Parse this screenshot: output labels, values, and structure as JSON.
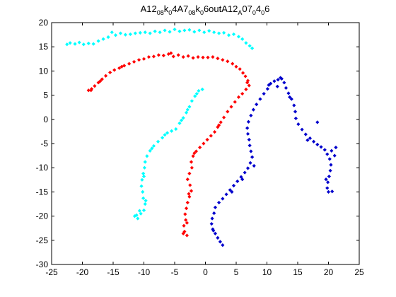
{
  "chart_data": {
    "type": "scatter",
    "title": "A12",
    "title_parts": [
      {
        "text": "A12",
        "sub": false
      },
      {
        "text": "08",
        "sub": true
      },
      {
        "text": "k",
        "sub": false
      },
      {
        "text": "0",
        "sub": true
      },
      {
        "text": "4A7",
        "sub": false
      },
      {
        "text": "08",
        "sub": true
      },
      {
        "text": "k",
        "sub": false
      },
      {
        "text": "0",
        "sub": true
      },
      {
        "text": "6outA12",
        "sub": false
      },
      {
        "text": "A",
        "sub": true
      },
      {
        "text": "07",
        "sub": false
      },
      {
        "text": "0",
        "sub": true
      },
      {
        "text": "4",
        "sub": false
      },
      {
        "text": "0",
        "sub": true
      },
      {
        "text": "6",
        "sub": false
      }
    ],
    "xlabel": "",
    "ylabel": "",
    "xlim": [
      -25,
      25
    ],
    "ylim": [
      -30,
      20
    ],
    "xticks": [
      -25,
      -20,
      -15,
      -10,
      -5,
      0,
      5,
      10,
      15,
      20,
      25
    ],
    "yticks": [
      -30,
      -25,
      -20,
      -15,
      -10,
      -5,
      0,
      5,
      10,
      15,
      20
    ],
    "grid": false,
    "marker": "diamond",
    "series": [
      {
        "color": "#00ffff",
        "points": [
          [
            -22.5,
            15.5
          ],
          [
            -22.0,
            15.8
          ],
          [
            -21.2,
            15.6
          ],
          [
            -20.5,
            15.9
          ],
          [
            -19.8,
            15.5
          ],
          [
            -19.0,
            15.7
          ],
          [
            -18.2,
            15.6
          ],
          [
            -17.4,
            16.2
          ],
          [
            -16.6,
            16.6
          ],
          [
            -15.8,
            17.0
          ],
          [
            -15.2,
            18.0
          ],
          [
            -14.6,
            17.4
          ],
          [
            -13.8,
            17.8
          ],
          [
            -13.0,
            17.5
          ],
          [
            -12.2,
            17.6
          ],
          [
            -11.4,
            17.8
          ],
          [
            -10.6,
            17.9
          ],
          [
            -9.8,
            18.0
          ],
          [
            -9.0,
            17.8
          ],
          [
            -8.2,
            18.2
          ],
          [
            -7.4,
            18.0
          ],
          [
            -6.6,
            18.4
          ],
          [
            -5.8,
            18.1
          ],
          [
            -5.0,
            18.6
          ],
          [
            -4.2,
            18.2
          ],
          [
            -3.4,
            18.4
          ],
          [
            -2.6,
            18.5
          ],
          [
            -1.8,
            18.1
          ],
          [
            -1.0,
            18.4
          ],
          [
            -0.2,
            18.0
          ],
          [
            0.6,
            18.3
          ],
          [
            1.4,
            18.0
          ],
          [
            2.2,
            17.8
          ],
          [
            3.0,
            17.9
          ],
          [
            3.8,
            17.4
          ],
          [
            4.6,
            17.6
          ],
          [
            5.4,
            17.1
          ],
          [
            6.0,
            16.6
          ],
          [
            6.6,
            15.8
          ],
          [
            7.2,
            15.2
          ],
          [
            7.6,
            14.7
          ],
          [
            -11.5,
            -20.0
          ],
          [
            -11.0,
            -20.5
          ],
          [
            -10.5,
            -19.5
          ],
          [
            -10.0,
            -18.8
          ],
          [
            -9.8,
            -17.5
          ],
          [
            -10.1,
            -16.3
          ],
          [
            -10.2,
            -15.0
          ],
          [
            -10.4,
            -13.8
          ],
          [
            -10.3,
            -12.5
          ],
          [
            -10.1,
            -11.2
          ],
          [
            -9.9,
            -10.0
          ],
          [
            -9.8,
            -8.8
          ],
          [
            -9.5,
            -7.6
          ],
          [
            -9.0,
            -6.5
          ],
          [
            -8.4,
            -5.5
          ],
          [
            -7.7,
            -4.6
          ],
          [
            -7.0,
            -3.8
          ],
          [
            -6.2,
            -2.8
          ],
          [
            -5.5,
            -2.4
          ],
          [
            -4.8,
            -2.0
          ],
          [
            -4.2,
            -0.8
          ],
          [
            -3.6,
            0.3
          ],
          [
            -3.1,
            1.4
          ],
          [
            -2.6,
            2.6
          ],
          [
            -2.2,
            3.8
          ],
          [
            -1.7,
            4.8
          ],
          [
            -1.1,
            5.9
          ],
          [
            -11.2,
            -19.8
          ],
          [
            -10.7,
            -18.9
          ],
          [
            -9.7,
            -16.8
          ],
          [
            -10.0,
            -11.8
          ],
          [
            -8.7,
            -6.0
          ],
          [
            -6.6,
            -3.2
          ],
          [
            -3.9,
            -0.2
          ],
          [
            -2.9,
            2.0
          ],
          [
            -1.4,
            5.3
          ],
          [
            -0.5,
            6.2
          ]
        ]
      },
      {
        "color": "#ff0000",
        "points": [
          [
            -19.0,
            6.0
          ],
          [
            -18.5,
            6.3
          ],
          [
            -18.0,
            6.9
          ],
          [
            -17.4,
            7.6
          ],
          [
            -16.8,
            8.3
          ],
          [
            -16.2,
            9.0
          ],
          [
            -15.5,
            9.7
          ],
          [
            -14.8,
            10.2
          ],
          [
            -14.0,
            10.6
          ],
          [
            -13.2,
            11.1
          ],
          [
            -12.4,
            11.5
          ],
          [
            -11.6,
            11.9
          ],
          [
            -10.8,
            12.3
          ],
          [
            -10.0,
            12.5
          ],
          [
            -9.2,
            12.9
          ],
          [
            -8.4,
            13.0
          ],
          [
            -7.6,
            13.3
          ],
          [
            -6.8,
            13.2
          ],
          [
            -6.0,
            13.5
          ],
          [
            -5.2,
            13.0
          ],
          [
            -4.4,
            13.3
          ],
          [
            -3.6,
            12.9
          ],
          [
            -2.8,
            13.1
          ],
          [
            -2.0,
            12.7
          ],
          [
            -1.2,
            12.9
          ],
          [
            -0.4,
            12.8
          ],
          [
            0.4,
            12.8
          ],
          [
            1.2,
            12.9
          ],
          [
            2.0,
            12.6
          ],
          [
            2.8,
            12.3
          ],
          [
            3.6,
            12.0
          ],
          [
            4.4,
            11.5
          ],
          [
            5.0,
            10.9
          ],
          [
            5.6,
            10.4
          ],
          [
            6.1,
            9.6
          ],
          [
            6.5,
            8.9
          ],
          [
            6.9,
            8.0
          ],
          [
            7.1,
            7.0
          ],
          [
            6.6,
            6.2
          ],
          [
            6.0,
            5.3
          ],
          [
            5.4,
            4.6
          ],
          [
            4.8,
            3.6
          ],
          [
            4.2,
            2.6
          ],
          [
            3.6,
            1.6
          ],
          [
            3.0,
            0.4
          ],
          [
            2.5,
            -0.6
          ],
          [
            2.0,
            -1.6
          ],
          [
            1.5,
            -2.6
          ],
          [
            0.9,
            -3.4
          ],
          [
            0.3,
            -4.2
          ],
          [
            -0.3,
            -5.0
          ],
          [
            -0.9,
            -5.8
          ],
          [
            -1.5,
            -6.6
          ],
          [
            -2.0,
            -7.6
          ],
          [
            -2.3,
            -8.8
          ],
          [
            -2.2,
            -10.0
          ],
          [
            -2.6,
            -11.2
          ],
          [
            -2.9,
            -12.4
          ],
          [
            -2.5,
            -13.6
          ],
          [
            -2.3,
            -14.8
          ],
          [
            -2.6,
            -16.0
          ],
          [
            -2.9,
            -17.2
          ],
          [
            -3.1,
            -18.4
          ],
          [
            -3.3,
            -19.6
          ],
          [
            -3.2,
            -20.8
          ],
          [
            -3.5,
            -22.0
          ],
          [
            -3.4,
            -23.2
          ],
          [
            -3.0,
            -24.0
          ],
          [
            -3.6,
            -23.6
          ],
          [
            -18.6,
            6.0
          ],
          [
            -17.1,
            7.9
          ],
          [
            -13.6,
            10.9
          ],
          [
            -5.6,
            13.7
          ],
          [
            6.8,
            7.6
          ],
          [
            2.2,
            -1.2
          ],
          [
            -1.8,
            -7.0
          ],
          [
            -2.7,
            -15.4
          ],
          [
            -3.0,
            -21.4
          ]
        ]
      },
      {
        "color": "#0000cc",
        "points": [
          [
            2.8,
            -26.0
          ],
          [
            2.4,
            -25.3
          ],
          [
            2.0,
            -24.5
          ],
          [
            1.6,
            -23.6
          ],
          [
            1.2,
            -22.7
          ],
          [
            1.0,
            -21.6
          ],
          [
            1.1,
            -20.5
          ],
          [
            1.4,
            -19.4
          ],
          [
            1.6,
            -18.2
          ],
          [
            2.2,
            -17.2
          ],
          [
            2.8,
            -16.4
          ],
          [
            3.4,
            -15.5
          ],
          [
            4.0,
            -14.6
          ],
          [
            4.6,
            -13.7
          ],
          [
            5.2,
            -12.8
          ],
          [
            5.8,
            -11.9
          ],
          [
            6.4,
            -11.0
          ],
          [
            6.9,
            -10.1
          ],
          [
            7.3,
            -9.0
          ],
          [
            7.6,
            -7.8
          ],
          [
            7.4,
            -6.6
          ],
          [
            7.2,
            -5.4
          ],
          [
            7.1,
            -4.2
          ],
          [
            6.9,
            -3.0
          ],
          [
            6.8,
            -1.8
          ],
          [
            7.0,
            -0.5
          ],
          [
            7.4,
            0.8
          ],
          [
            7.8,
            2.0
          ],
          [
            8.3,
            3.1
          ],
          [
            8.9,
            4.2
          ],
          [
            9.5,
            5.3
          ],
          [
            10.1,
            6.3
          ],
          [
            10.6,
            7.4
          ],
          [
            11.2,
            7.9
          ],
          [
            11.8,
            8.2
          ],
          [
            12.4,
            8.4
          ],
          [
            12.8,
            7.6
          ],
          [
            13.1,
            6.5
          ],
          [
            13.5,
            5.4
          ],
          [
            14.0,
            4.2
          ],
          [
            14.4,
            2.9
          ],
          [
            14.6,
            1.6
          ],
          [
            14.7,
            0.2
          ],
          [
            15.1,
            -1.0
          ],
          [
            15.7,
            -2.1
          ],
          [
            16.3,
            -3.1
          ],
          [
            17.0,
            -3.9
          ],
          [
            17.6,
            -4.6
          ],
          [
            18.2,
            -5.2
          ],
          [
            18.8,
            -5.7
          ],
          [
            19.4,
            -6.3
          ],
          [
            19.8,
            -7.2
          ],
          [
            20.2,
            -8.2
          ],
          [
            20.4,
            -9.4
          ],
          [
            20.3,
            -10.6
          ],
          [
            20.1,
            -11.8
          ],
          [
            19.9,
            -13.0
          ],
          [
            19.8,
            -14.2
          ],
          [
            20.0,
            -15.0
          ],
          [
            20.6,
            -14.9
          ],
          [
            20.5,
            -6.5
          ],
          [
            21.0,
            -7.5
          ],
          [
            21.2,
            -5.8
          ],
          [
            18.2,
            -0.6
          ],
          [
            10.3,
            7.1
          ],
          [
            11.7,
            6.8
          ],
          [
            7.9,
            -9.6
          ],
          [
            6.0,
            -12.4
          ],
          [
            4.3,
            -15.0
          ],
          [
            1.3,
            -23.0
          ],
          [
            12.2,
            8.6
          ],
          [
            13.7,
            4.6
          ],
          [
            16.6,
            -4.3
          ],
          [
            19.6,
            -12.4
          ]
        ]
      }
    ]
  }
}
